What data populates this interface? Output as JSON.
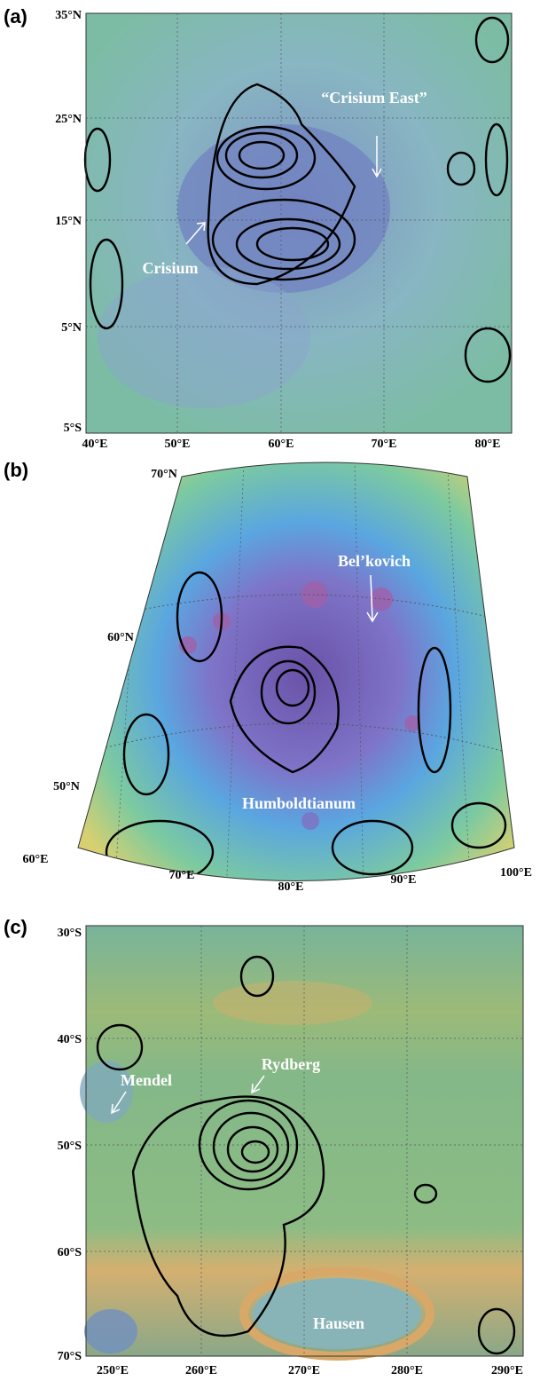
{
  "panels": [
    {
      "label": "(a)",
      "lat_labels": [
        "35°N",
        "25°N",
        "15°N",
        "5°N",
        "5°S"
      ],
      "lon_labels": [
        "40°E",
        "50°E",
        "60°E",
        "70°E",
        "80°E"
      ],
      "annotations": [
        "“Crisium East”",
        "Crisium"
      ]
    },
    {
      "label": "(b)",
      "lat_labels": [
        "70°N",
        "60°N",
        "50°N"
      ],
      "lon_labels": [
        "60°E",
        "70°E",
        "80°E",
        "90°E",
        "100°E"
      ],
      "annotations": [
        "Bel’kovich",
        "Humboldtianum"
      ]
    },
    {
      "label": "(c)",
      "lat_labels": [
        "30°S",
        "40°S",
        "50°S",
        "60°S",
        "70°S"
      ],
      "lon_labels": [
        "250°E",
        "260°E",
        "270°E",
        "280°E",
        "290°E"
      ],
      "annotations": [
        "Mendel",
        "Rydberg",
        "Hausen"
      ]
    }
  ]
}
